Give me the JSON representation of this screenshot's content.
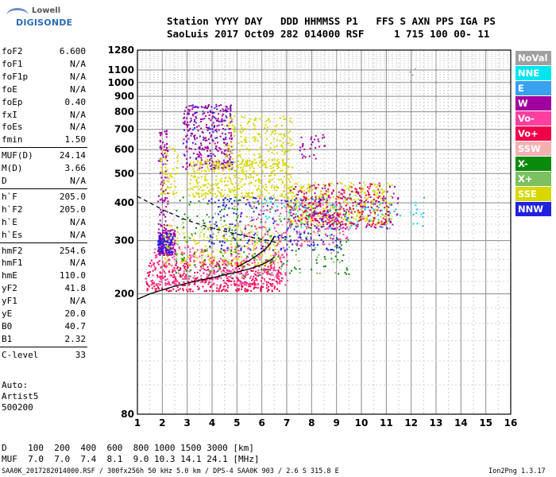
{
  "logo": {
    "line1": "Lowell",
    "line2": "DIGISONDE"
  },
  "header": {
    "row1": "Station YYYY DAY   DDD HHMMSS P1   FFS S AXN PPS IGA PS",
    "row2": "SaoLuis 2017 Oct09 282 014000 RSF     1 715 100 00- 11"
  },
  "params": [
    {
      "name": "foF2",
      "value": "6.600"
    },
    {
      "name": "foF1",
      "value": "N/A"
    },
    {
      "name": "foF1p",
      "value": "N/A"
    },
    {
      "name": "foE",
      "value": "N/A"
    },
    {
      "name": "foEp",
      "value": "0.40"
    },
    {
      "name": "fxI",
      "value": "N/A"
    },
    {
      "name": "foEs",
      "value": "N/A"
    },
    {
      "name": "fmin",
      "value": "1.50"
    },
    {
      "name": "MUF(D)",
      "value": "24.14"
    },
    {
      "name": "M(D)",
      "value": "3.66"
    },
    {
      "name": "D",
      "value": "N/A"
    },
    {
      "name": "h`F",
      "value": "205.0"
    },
    {
      "name": "h`F2",
      "value": "205.0"
    },
    {
      "name": "h`E",
      "value": "N/A"
    },
    {
      "name": "h`Es",
      "value": "N/A"
    },
    {
      "name": "hmF2",
      "value": "254.6"
    },
    {
      "name": "hmF1",
      "value": "N/A"
    },
    {
      "name": "hmE",
      "value": "110.0"
    },
    {
      "name": "yF2",
      "value": "41.8"
    },
    {
      "name": "yF1",
      "value": "N/A"
    },
    {
      "name": "yE",
      "value": "20.0"
    },
    {
      "name": "B0",
      "value": "40.7"
    },
    {
      "name": "B1",
      "value": "2.32"
    },
    {
      "name": "C-level",
      "value": "33"
    }
  ],
  "misc": {
    "auto": "Auto:",
    "artist": "Artist5",
    "version": "500200"
  },
  "legend": [
    {
      "label": "NoVal",
      "color": "#a0a0a0"
    },
    {
      "label": "NNE",
      "color": "#00e5ee"
    },
    {
      "label": "E",
      "color": "#3aa0f0"
    },
    {
      "label": "W",
      "color": "#a000a0"
    },
    {
      "label": "Vo-",
      "color": "#ff3fa0"
    },
    {
      "label": "Vo+",
      "color": "#f0004a"
    },
    {
      "label": "SSW",
      "color": "#f4b0b0"
    },
    {
      "label": "X-",
      "color": "#0a8a0a"
    },
    {
      "label": "X+",
      "color": "#7cc060"
    },
    {
      "label": "SSE",
      "color": "#d8d800"
    },
    {
      "label": "NNW",
      "color": "#2020e0"
    }
  ],
  "bottom": {
    "d_row": "D    100  200  400  600  800 1000 1500 3000 [km]",
    "muf_row": "MUF  7.0  7.0  7.4  8.1  9.0 10.3 14.1 24.1 [MHz]",
    "footer_left": "SAA0K_2017282014000.RSF / 300fx256h 50 kHz 5.0 km / DPS-4 SAA0K 903 / 2.6 S 315.8 E",
    "footer_right": "Ion2Png 1.3.17"
  },
  "chart_data": {
    "type": "scatter",
    "xlim": [
      1,
      16
    ],
    "ylim": [
      80,
      1280
    ],
    "y_scale": "log",
    "x_ticks": [
      "1",
      "2",
      "3",
      "4",
      "5",
      "6",
      "7",
      "8",
      "9",
      "10",
      "11",
      "12",
      "13",
      "14",
      "15",
      "16"
    ],
    "y_ticks": [
      80,
      200,
      300,
      400,
      500,
      600,
      700,
      800,
      900,
      1000,
      1100,
      1280
    ],
    "grid": true,
    "legend_placement": "right",
    "traces": [
      {
        "name": "profile",
        "color": "#000000",
        "dash": false,
        "x": [
          1.0,
          1.5,
          2.0,
          2.5,
          3.0,
          3.5,
          4.0,
          4.5,
          5.0,
          5.5,
          6.0,
          6.3,
          6.5
        ],
        "y": [
          192,
          200,
          206,
          212,
          217,
          222,
          226,
          231,
          236,
          242,
          250,
          257,
          265
        ]
      },
      {
        "name": "profile-upper",
        "color": "#000000",
        "dash": false,
        "x": [
          5.0,
          5.5,
          6.0,
          6.3,
          6.5
        ],
        "y": [
          245,
          258,
          275,
          290,
          310
        ]
      },
      {
        "name": "dashed",
        "color": "#000000",
        "dash": true,
        "x": [
          1.0,
          1.5,
          2.0,
          3.0,
          4.0,
          5.0,
          5.8,
          6.3,
          6.6
        ],
        "y": [
          420,
          400,
          380,
          350,
          330,
          315,
          305,
          300,
          295
        ]
      }
    ],
    "clusters": [
      {
        "color": "#f0004a",
        "n": 420,
        "xr": [
          1.3,
          6.8
        ],
        "yr": [
          205,
          260
        ]
      },
      {
        "color": "#ff3fa0",
        "n": 380,
        "xr": [
          1.5,
          7.0
        ],
        "yr": [
          215,
          290
        ]
      },
      {
        "color": "#a000a0",
        "n": 160,
        "xr": [
          1.8,
          2.5
        ],
        "yr": [
          270,
          330
        ]
      },
      {
        "color": "#2020e0",
        "n": 90,
        "xr": [
          1.8,
          2.4
        ],
        "yr": [
          275,
          320
        ]
      },
      {
        "color": "#a000a0",
        "n": 300,
        "xr": [
          2.8,
          4.8
        ],
        "yr": [
          520,
          850
        ]
      },
      {
        "color": "#2020e0",
        "n": 60,
        "xr": [
          2.8,
          4.8
        ],
        "yr": [
          520,
          850
        ]
      },
      {
        "color": "#d8d800",
        "n": 380,
        "xr": [
          3.0,
          7.2
        ],
        "yr": [
          420,
          560
        ]
      },
      {
        "color": "#d8d800",
        "n": 420,
        "xr": [
          7.0,
          11.2
        ],
        "yr": [
          340,
          470
        ]
      },
      {
        "color": "#d8d800",
        "n": 200,
        "xr": [
          4.5,
          7.2
        ],
        "yr": [
          530,
          780
        ]
      },
      {
        "color": "#d8d800",
        "n": 220,
        "xr": [
          2.0,
          6.8
        ],
        "yr": [
          250,
          340
        ]
      },
      {
        "color": "#0a8a0a",
        "n": 180,
        "xr": [
          2.5,
          9.5
        ],
        "yr": [
          230,
          420
        ]
      },
      {
        "color": "#7cc060",
        "n": 120,
        "xr": [
          2.5,
          9.5
        ],
        "yr": [
          230,
          420
        ]
      },
      {
        "color": "#2020e0",
        "n": 220,
        "xr": [
          3.8,
          9.2
        ],
        "yr": [
          280,
          420
        ]
      },
      {
        "color": "#a000a0",
        "n": 200,
        "xr": [
          7.0,
          11.5
        ],
        "yr": [
          330,
          460
        ]
      },
      {
        "color": "#f0004a",
        "n": 180,
        "xr": [
          7.5,
          11.0
        ],
        "yr": [
          340,
          470
        ]
      },
      {
        "color": "#ff3fa0",
        "n": 160,
        "xr": [
          5.0,
          9.5
        ],
        "yr": [
          290,
          420
        ]
      },
      {
        "color": "#3aa0f0",
        "n": 50,
        "xr": [
          6.0,
          12.5
        ],
        "yr": [
          330,
          420
        ]
      },
      {
        "color": "#00e5ee",
        "n": 50,
        "xr": [
          6.0,
          12.5
        ],
        "yr": [
          330,
          420
        ]
      },
      {
        "color": "#a000a0",
        "n": 90,
        "xr": [
          1.8,
          2.2
        ],
        "yr": [
          330,
          700
        ]
      },
      {
        "color": "#d8d800",
        "n": 60,
        "xr": [
          1.9,
          2.6
        ],
        "yr": [
          430,
          620
        ]
      },
      {
        "color": "#a000a0",
        "n": 30,
        "xr": [
          7.5,
          8.5
        ],
        "yr": [
          560,
          680
        ]
      },
      {
        "color": "#f4b0b0",
        "n": 30,
        "xr": [
          2.0,
          10.0
        ],
        "yr": [
          250,
          520
        ]
      },
      {
        "color": "#a0a0a0",
        "n": 4,
        "xr": [
          11.7,
          12.2
        ],
        "yr": [
          1000,
          1180
        ]
      }
    ]
  }
}
